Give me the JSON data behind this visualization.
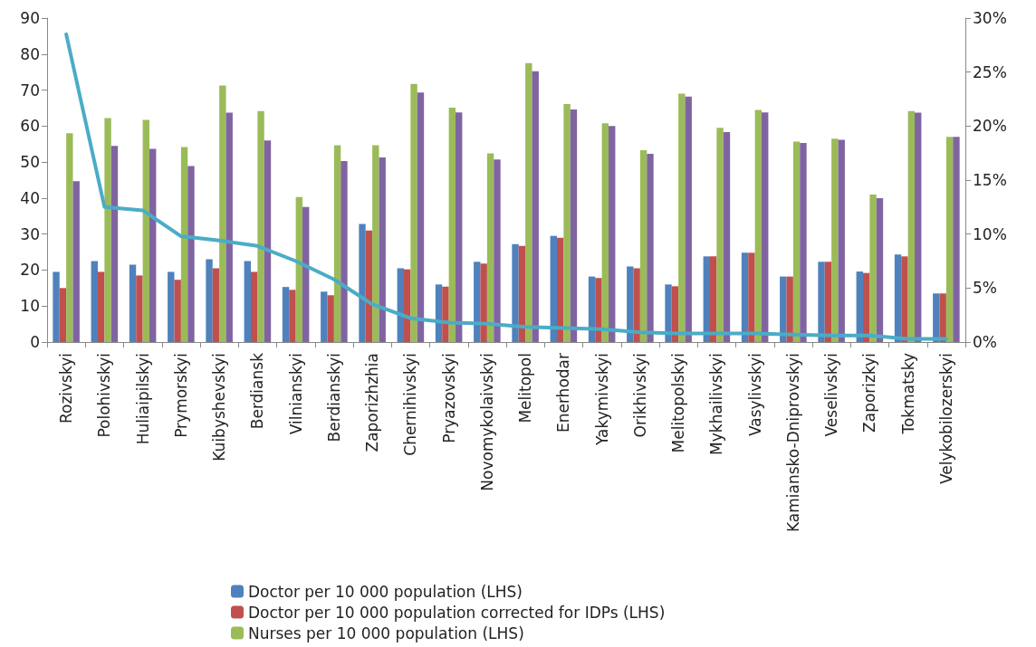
{
  "chart_data": {
    "type": "bar",
    "categories": [
      "Rozivskyi",
      "Polohivskyi",
      "Huliaipilskyi",
      "Prymorskyi",
      "Kuibyshevskyi",
      "Berdiansk",
      "Vilnianskyi",
      "Berdianskyi",
      "Zaporizhzhia",
      "Chernihivskyi",
      "Pryazovskyi",
      "Novomykolaivskyi",
      "Melitopol",
      "Enerhodar",
      "Yakymivskyi",
      "Orikhivskyi",
      "Melitopolskyi",
      "Mykhailivskyi",
      "Vasylivskyi",
      "Kamiansko-Dniprovskyi",
      "Veselivskyi",
      "Zaporizkyi",
      "Tokmatsky",
      "Velykobilozerskyi"
    ],
    "series": [
      {
        "name": "Doctor per 10 000 population (LHS)",
        "color": "#4f81bd",
        "values": [
          19.5,
          22.5,
          21.5,
          19.5,
          23,
          22.5,
          15.3,
          14,
          32.8,
          20.5,
          16,
          22.3,
          27.2,
          29.5,
          18.2,
          21,
          16,
          23.8,
          24.8,
          18.2,
          22.3,
          19.6,
          24.3,
          13.5
        ]
      },
      {
        "name": "Doctor per 10 000 population corrected for IDPs (LHS)",
        "color": "#c0504d",
        "values": [
          15,
          19.5,
          18.5,
          17.3,
          20.5,
          19.5,
          14.5,
          13,
          31,
          20.2,
          15.4,
          21.8,
          26.7,
          29,
          17.8,
          20.5,
          15.5,
          23.8,
          24.8,
          18.2,
          22.3,
          19.2,
          23.8,
          13.5
        ]
      },
      {
        "name": "Nurses per 10 000 population (LHS)",
        "color": "#9bbb59",
        "values": [
          58,
          62.2,
          61.7,
          54.2,
          71.3,
          64.2,
          40.3,
          54.7,
          54.7,
          71.7,
          65.1,
          52.4,
          77.5,
          66.1,
          60.8,
          53.3,
          69,
          59.5,
          64.5,
          55.7,
          56.5,
          41,
          64.2,
          57
        ]
      },
      {
        "color": "#8064a2",
        "values": [
          44.7,
          54.5,
          53.7,
          48.9,
          63.7,
          56,
          37.5,
          50.3,
          51.3,
          69.3,
          63.8,
          50.7,
          75.2,
          64.6,
          60,
          52.3,
          68.2,
          58.3,
          63.8,
          55.3,
          56.2,
          40,
          63.7,
          57
        ]
      },
      {
        "type": "line",
        "axis": "y2",
        "color": "#4bacc6",
        "values": [
          28.5,
          12.5,
          12.2,
          9.8,
          9.4,
          8.9,
          7.5,
          5.8,
          3.5,
          2.2,
          1.8,
          1.7,
          1.4,
          1.3,
          1.2,
          0.9,
          0.8,
          0.8,
          0.8,
          0.7,
          0.6,
          0.6,
          0.3,
          0.3
        ]
      }
    ],
    "ylim": [
      0,
      90
    ],
    "yticks": [
      0,
      10,
      20,
      30,
      40,
      50,
      60,
      70,
      80,
      90
    ],
    "y2lim": [
      0,
      30
    ],
    "y2ticks": [
      {
        "value": 0,
        "label": "0%"
      },
      {
        "value": 5,
        "label": "5%"
      },
      {
        "value": 10,
        "label": "10%"
      },
      {
        "value": 15,
        "label": "15%"
      },
      {
        "value": 20,
        "label": "20%"
      },
      {
        "value": 25,
        "label": "25%"
      },
      {
        "value": 30,
        "label": "30%"
      }
    ],
    "grid": false,
    "legend": "bottom",
    "marker": "none",
    "line_style": "solid"
  }
}
